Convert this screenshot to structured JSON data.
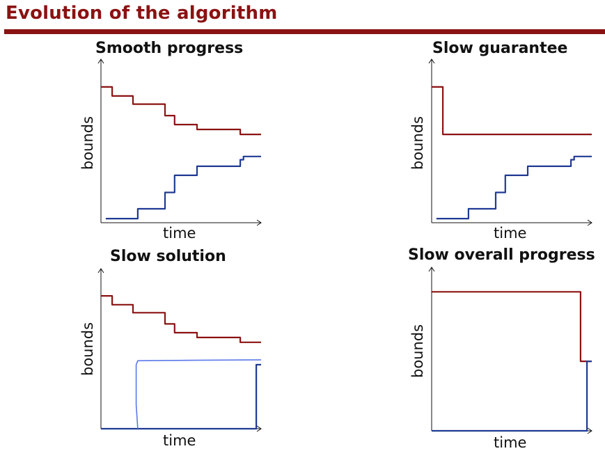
{
  "title": "Evolution of the algorithm",
  "colors": {
    "title": "#8b1212",
    "upper_bound": "#8b1212",
    "lower_bound": "#1f3a93",
    "handdrawn": "#5a78e8"
  },
  "chart_data": [
    {
      "type": "line",
      "title": "Smooth progress",
      "xlabel": "time",
      "ylabel": "bounds",
      "series": [
        {
          "role": "upper",
          "points": [
            [
              0,
              8.3
            ],
            [
              0.07,
              8.3
            ],
            [
              0.07,
              7.75
            ],
            [
              0.2,
              7.75
            ],
            [
              0.2,
              7.25
            ],
            [
              0.4,
              7.25
            ],
            [
              0.4,
              6.55
            ],
            [
              0.46,
              6.55
            ],
            [
              0.46,
              6.0
            ],
            [
              0.6,
              6.0
            ],
            [
              0.6,
              5.7
            ],
            [
              0.87,
              5.7
            ],
            [
              0.87,
              5.4
            ],
            [
              1.0,
              5.4
            ]
          ]
        },
        {
          "role": "lower",
          "points": [
            [
              0.03,
              0.25
            ],
            [
              0.23,
              0.25
            ],
            [
              0.23,
              0.85
            ],
            [
              0.4,
              0.85
            ],
            [
              0.4,
              1.85
            ],
            [
              0.46,
              1.85
            ],
            [
              0.46,
              2.9
            ],
            [
              0.6,
              2.9
            ],
            [
              0.6,
              3.45
            ],
            [
              0.87,
              3.45
            ],
            [
              0.87,
              3.85
            ],
            [
              0.89,
              3.85
            ],
            [
              0.89,
              4.05
            ],
            [
              1.0,
              4.05
            ]
          ]
        }
      ]
    },
    {
      "type": "line",
      "title": "Slow guarantee",
      "xlabel": "time",
      "ylabel": "bounds",
      "series": [
        {
          "role": "upper",
          "points": [
            [
              0,
              8.3
            ],
            [
              0.07,
              8.3
            ],
            [
              0.07,
              5.4
            ],
            [
              1.0,
              5.4
            ]
          ]
        },
        {
          "role": "lower",
          "points": [
            [
              0.03,
              0.25
            ],
            [
              0.23,
              0.25
            ],
            [
              0.23,
              0.85
            ],
            [
              0.4,
              0.85
            ],
            [
              0.4,
              1.85
            ],
            [
              0.46,
              1.85
            ],
            [
              0.46,
              2.9
            ],
            [
              0.6,
              2.9
            ],
            [
              0.6,
              3.45
            ],
            [
              0.87,
              3.45
            ],
            [
              0.87,
              3.85
            ],
            [
              0.89,
              3.85
            ],
            [
              0.89,
              4.05
            ],
            [
              1.0,
              4.05
            ]
          ]
        }
      ]
    },
    {
      "type": "line",
      "title": "Slow solution",
      "xlabel": "time",
      "ylabel": "bounds",
      "series": [
        {
          "role": "upper",
          "points": [
            [
              0,
              8.3
            ],
            [
              0.07,
              8.3
            ],
            [
              0.07,
              7.75
            ],
            [
              0.2,
              7.75
            ],
            [
              0.2,
              7.25
            ],
            [
              0.4,
              7.25
            ],
            [
              0.4,
              6.55
            ],
            [
              0.46,
              6.55
            ],
            [
              0.46,
              6.0
            ],
            [
              0.6,
              6.0
            ],
            [
              0.6,
              5.7
            ],
            [
              0.87,
              5.7
            ],
            [
              0.87,
              5.4
            ],
            [
              1.0,
              5.4
            ]
          ]
        },
        {
          "role": "lower",
          "points": [
            [
              0,
              0
            ],
            [
              0.97,
              0
            ],
            [
              0.97,
              4.0
            ],
            [
              1.0,
              4.0
            ]
          ]
        },
        {
          "role": "handdrawn",
          "points": [
            [
              0.23,
              0.0
            ],
            [
              0.22,
              1.5
            ],
            [
              0.22,
              4.0
            ],
            [
              0.23,
              4.25
            ],
            [
              0.6,
              4.28
            ],
            [
              0.97,
              4.3
            ],
            [
              1.0,
              4.3
            ]
          ]
        }
      ]
    },
    {
      "type": "line",
      "title": "Slow overall progress",
      "xlabel": "time",
      "ylabel": "bounds",
      "series": [
        {
          "role": "upper",
          "points": [
            [
              0,
              8.5
            ],
            [
              0.93,
              8.5
            ],
            [
              0.93,
              4.25
            ],
            [
              1.0,
              4.25
            ]
          ]
        },
        {
          "role": "lower",
          "points": [
            [
              0,
              0
            ],
            [
              0.97,
              0
            ],
            [
              0.97,
              4.25
            ],
            [
              1.0,
              4.25
            ]
          ]
        }
      ]
    }
  ]
}
